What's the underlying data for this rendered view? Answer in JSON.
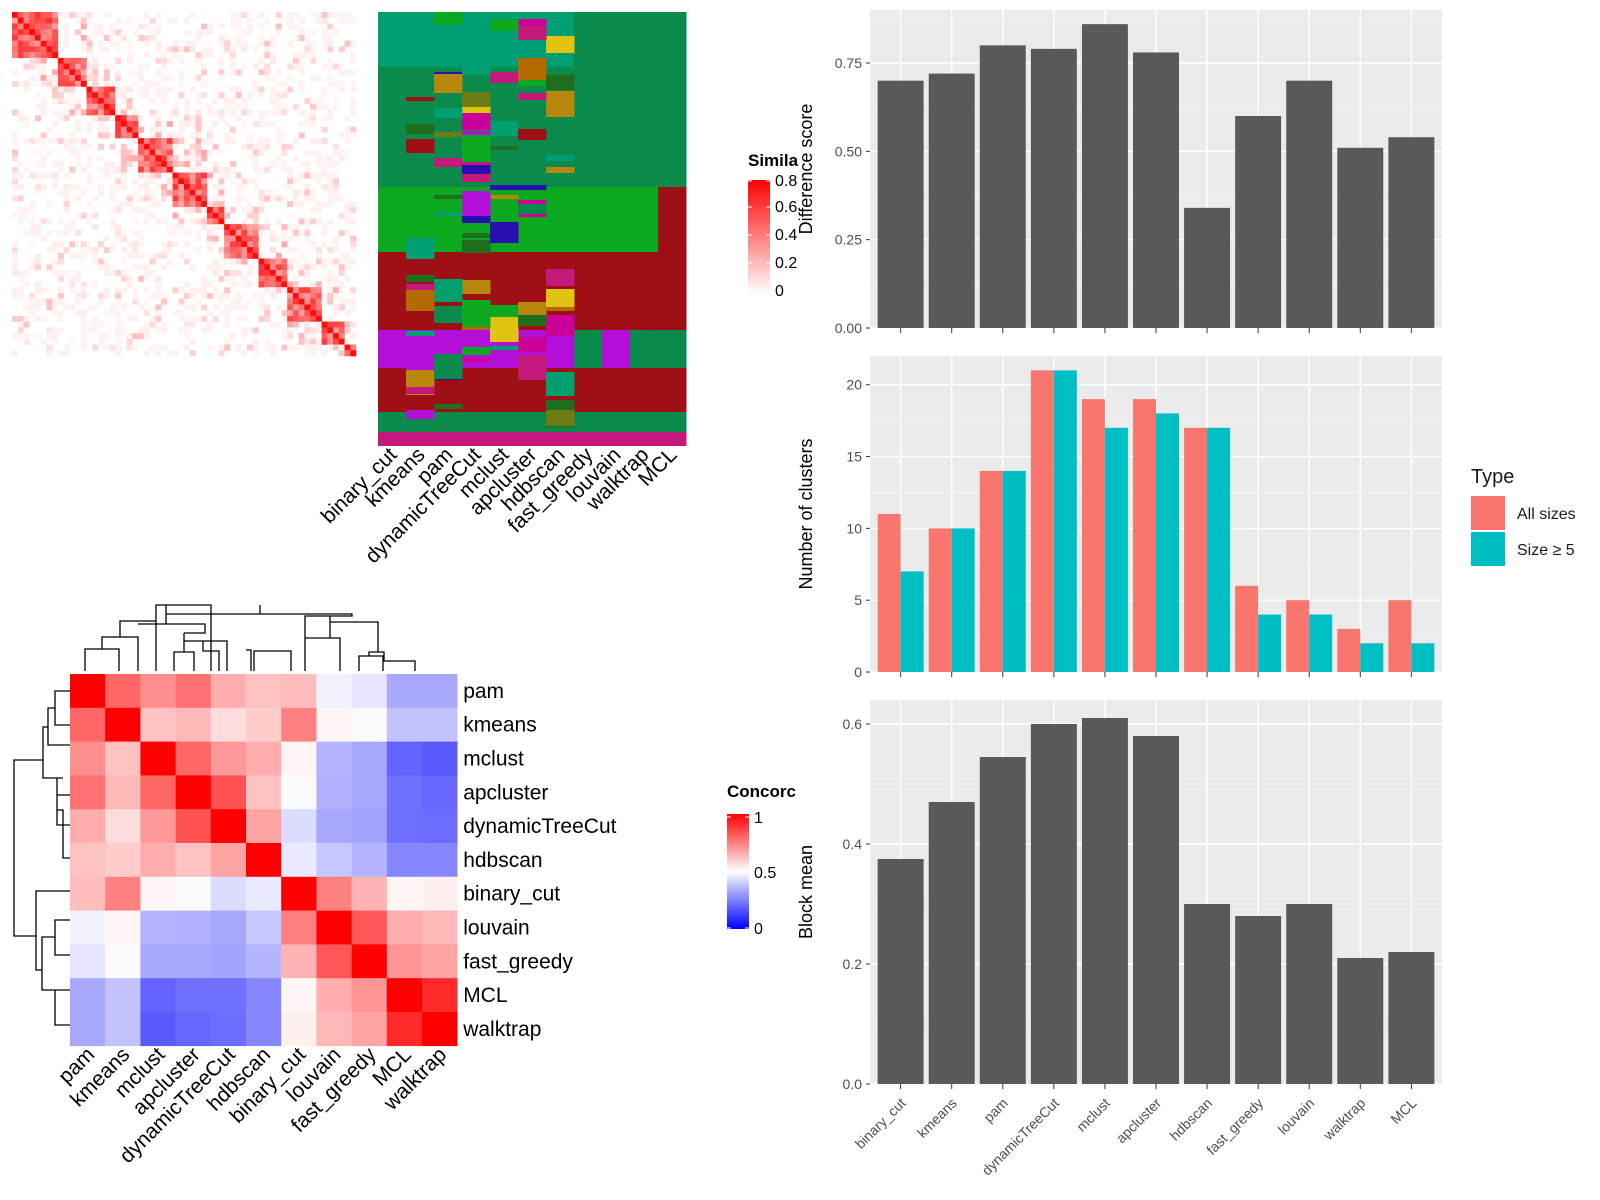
{
  "legends": {
    "similarity": {
      "title": "Simila",
      "ticks": [
        "0.8",
        "0.6",
        "0.4",
        "0.2",
        "0"
      ]
    },
    "concordance": {
      "title": "Concorc",
      "ticks": [
        "1",
        "0.5",
        "0"
      ]
    },
    "type": {
      "title": "Type",
      "items": [
        {
          "label": "All sizes",
          "color": "#F8766D"
        },
        {
          "label": "Size ≥ 5",
          "color": "#00BFC4"
        }
      ]
    }
  },
  "chart_data": [
    {
      "id": "similarity_heatmap",
      "type": "heatmap",
      "method_labels": [
        "binary_cut",
        "kmeans",
        "pam",
        "dynamicTreeCut",
        "mclust",
        "apcluster",
        "hdbscan",
        "fast_greedy",
        "louvain",
        "walktrap",
        "MCL"
      ],
      "block_sizes": [
        30,
        22,
        18,
        14,
        26,
        20,
        14,
        24,
        18,
        22,
        16,
        8
      ],
      "color_scale": {
        "low": "#FFFFFF",
        "high": "#FF0000",
        "range": [
          0,
          0.8
        ]
      }
    },
    {
      "id": "concordance_heatmap",
      "type": "heatmap",
      "rows": [
        "pam",
        "kmeans",
        "mclust",
        "apcluster",
        "dynamicTreeCut",
        "hdbscan",
        "binary_cut",
        "louvain",
        "fast_greedy",
        "MCL",
        "walktrap"
      ],
      "cols": [
        "pam",
        "kmeans",
        "mclust",
        "apcluster",
        "dynamicTreeCut",
        "hdbscan",
        "binary_cut",
        "louvain",
        "fast_greedy",
        "MCL",
        "walktrap"
      ],
      "values": [
        [
          1.0,
          0.8,
          0.72,
          0.78,
          0.66,
          0.62,
          0.63,
          0.47,
          0.44,
          0.3,
          0.3
        ],
        [
          0.8,
          1.0,
          0.62,
          0.64,
          0.57,
          0.6,
          0.75,
          0.52,
          0.49,
          0.36,
          0.36
        ],
        [
          0.72,
          0.62,
          1.0,
          0.8,
          0.7,
          0.66,
          0.52,
          0.33,
          0.3,
          0.14,
          0.12
        ],
        [
          0.78,
          0.64,
          0.8,
          1.0,
          0.84,
          0.62,
          0.49,
          0.32,
          0.3,
          0.17,
          0.15
        ],
        [
          0.66,
          0.57,
          0.7,
          0.84,
          1.0,
          0.68,
          0.42,
          0.3,
          0.29,
          0.17,
          0.16
        ],
        [
          0.62,
          0.6,
          0.66,
          0.62,
          0.68,
          1.0,
          0.45,
          0.37,
          0.33,
          0.22,
          0.22
        ],
        [
          0.63,
          0.75,
          0.52,
          0.49,
          0.42,
          0.45,
          1.0,
          0.75,
          0.65,
          0.52,
          0.53
        ],
        [
          0.47,
          0.52,
          0.33,
          0.32,
          0.3,
          0.37,
          0.75,
          1.0,
          0.83,
          0.66,
          0.64
        ],
        [
          0.44,
          0.49,
          0.3,
          0.3,
          0.29,
          0.33,
          0.65,
          0.83,
          1.0,
          0.71,
          0.68
        ],
        [
          0.3,
          0.36,
          0.14,
          0.17,
          0.17,
          0.22,
          0.52,
          0.66,
          0.71,
          1.0,
          0.92
        ],
        [
          0.3,
          0.36,
          0.12,
          0.15,
          0.16,
          0.22,
          0.53,
          0.64,
          0.68,
          0.92,
          1.0
        ]
      ],
      "color_scale": {
        "low": "#0000FF",
        "mid": "#FFFFFF",
        "high": "#FF0000",
        "range": [
          0,
          1
        ]
      }
    },
    {
      "id": "difference_score",
      "type": "bar",
      "categories": [
        "binary_cut",
        "kmeans",
        "pam",
        "dynamicTreeCut",
        "mclust",
        "apcluster",
        "hdbscan",
        "fast_greedy",
        "louvain",
        "walktrap",
        "MCL"
      ],
      "values": [
        0.7,
        0.72,
        0.8,
        0.79,
        0.86,
        0.78,
        0.34,
        0.6,
        0.7,
        0.51,
        0.54
      ],
      "ylabel": "Difference score",
      "ylim": [
        0,
        0.9
      ],
      "yticks": [
        "0.00",
        "0.25",
        "0.50",
        "0.75"
      ],
      "color": "#595959"
    },
    {
      "id": "number_of_clusters",
      "type": "bar",
      "categories": [
        "binary_cut",
        "kmeans",
        "pam",
        "dynamicTreeCut",
        "mclust",
        "apcluster",
        "hdbscan",
        "fast_greedy",
        "louvain",
        "walktrap",
        "MCL"
      ],
      "series": [
        {
          "name": "All sizes",
          "values": [
            11,
            10,
            14,
            21,
            19,
            19,
            17,
            6,
            5,
            3,
            5
          ]
        },
        {
          "name": "Size ≥ 5",
          "values": [
            7,
            10,
            14,
            21,
            17,
            18,
            17,
            4,
            4,
            2,
            2
          ]
        }
      ],
      "ylabel": "Number of clusters",
      "ylim": [
        0,
        22
      ],
      "yticks": [
        "0",
        "5",
        "10",
        "15",
        "20"
      ],
      "legend": "right"
    },
    {
      "id": "block_mean",
      "type": "bar",
      "categories": [
        "binary_cut",
        "kmeans",
        "pam",
        "dynamicTreeCut",
        "mclust",
        "apcluster",
        "hdbscan",
        "fast_greedy",
        "louvain",
        "walktrap",
        "MCL"
      ],
      "values": [
        0.375,
        0.47,
        0.545,
        0.6,
        0.61,
        0.58,
        0.3,
        0.28,
        0.3,
        0.21,
        0.22
      ],
      "ylabel": "Block mean",
      "ylim": [
        0,
        0.64
      ],
      "yticks": [
        "0.0",
        "0.2",
        "0.4",
        "0.6"
      ],
      "color": "#595959"
    }
  ]
}
